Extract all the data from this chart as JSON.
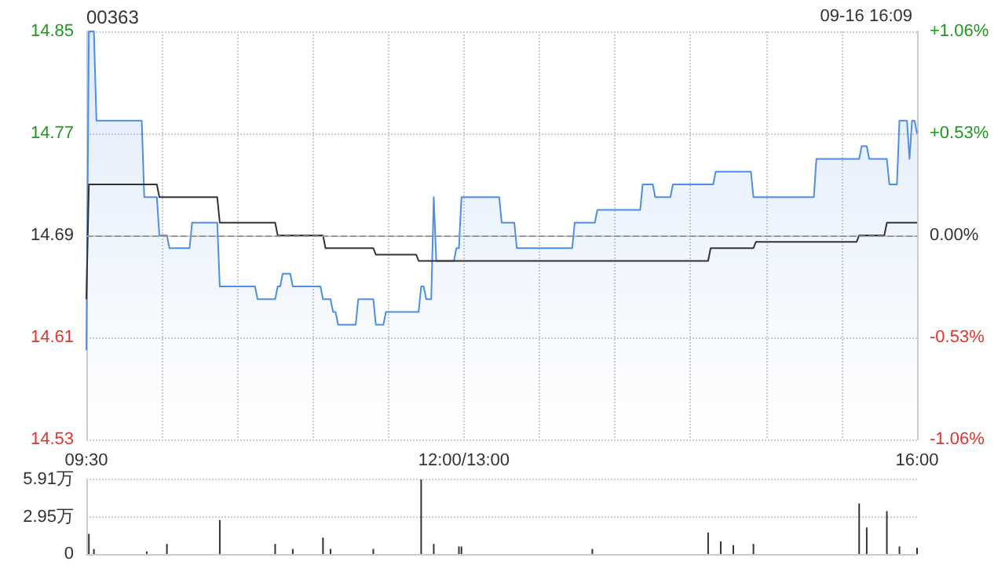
{
  "chart_data": [
    {
      "type": "line",
      "title": "00363",
      "subtitle": "09-16 16:09",
      "categories": [
        "09:30",
        null,
        null,
        null,
        null,
        null,
        null,
        null,
        null,
        null,
        null,
        null,
        null,
        null,
        null,
        null,
        null,
        null,
        null,
        null,
        null,
        null,
        null,
        null,
        null,
        null,
        null,
        null,
        null,
        null,
        null,
        null,
        null,
        null,
        null,
        null,
        null,
        null,
        null,
        null,
        null,
        null,
        null,
        null,
        null,
        null,
        null,
        null,
        null,
        null,
        null,
        null,
        null,
        null,
        null,
        null,
        null,
        null,
        null,
        null,
        null,
        null,
        null,
        null,
        null,
        null,
        null,
        null,
        null,
        null,
        null,
        null,
        null,
        null,
        null,
        null,
        null,
        null,
        null,
        null,
        null,
        null,
        null,
        null,
        null,
        null,
        null,
        null,
        null,
        null,
        null,
        null,
        null,
        null,
        null,
        null,
        null,
        null,
        null,
        null,
        null,
        null,
        null,
        null,
        null,
        null,
        null,
        null,
        null,
        null,
        null,
        null,
        null,
        null,
        null,
        null,
        null,
        null,
        null,
        null,
        null,
        null,
        null,
        null,
        null,
        null,
        null,
        null,
        null,
        null,
        null,
        null,
        null,
        null,
        null,
        null,
        null,
        null,
        null,
        null,
        null,
        null,
        null,
        null,
        null,
        null,
        null,
        null,
        null,
        null,
        "12:00/13:00",
        null,
        null,
        null,
        null,
        null,
        null,
        null,
        null,
        null,
        null,
        null,
        null,
        null,
        null,
        null,
        null,
        null,
        null,
        null,
        null,
        null,
        null,
        null,
        null,
        null,
        null,
        null,
        null,
        null,
        null,
        null,
        null,
        null,
        null,
        null,
        null,
        null,
        null,
        null,
        null,
        null,
        null,
        null,
        null,
        null,
        null,
        null,
        null,
        null,
        null,
        null,
        null,
        null,
        null,
        null,
        null,
        null,
        null,
        null,
        null,
        null,
        null,
        null,
        null,
        null,
        null,
        null,
        null,
        null,
        null,
        null,
        null,
        null,
        null,
        null,
        null,
        null,
        null,
        null,
        null,
        null,
        null,
        null,
        null,
        null,
        null,
        null,
        null,
        null,
        null,
        null,
        null,
        null,
        null,
        null,
        null,
        null,
        null,
        null,
        null,
        null,
        null,
        null,
        null,
        null,
        null,
        null,
        null,
        null,
        null,
        null,
        null,
        null,
        null,
        null,
        null,
        null,
        null,
        null,
        null,
        null,
        null,
        null,
        null,
        null,
        null,
        null,
        null,
        null,
        null,
        null,
        null,
        null,
        null,
        null,
        null,
        null,
        null,
        null,
        null,
        null,
        null,
        null,
        null,
        null,
        null,
        null,
        null,
        null,
        null,
        null,
        null,
        null,
        null,
        null,
        null,
        null,
        null,
        null,
        null,
        null,
        null,
        null,
        null,
        null,
        null,
        null,
        null,
        null,
        null,
        null,
        null,
        null,
        null,
        null,
        null,
        null,
        null,
        null,
        "16:00"
      ],
      "ylim": [
        14.53,
        14.85
      ],
      "yticks": [
        14.53,
        14.61,
        14.69,
        14.77,
        14.85
      ],
      "y2lim": [
        -1.06,
        1.06
      ],
      "y2ticks": [
        {
          "value": -1.06,
          "label": "-1.06%"
        },
        {
          "value": -0.53,
          "label": "-0.53%"
        },
        {
          "value": 0,
          "label": "0.00%"
        },
        {
          "value": 0.53,
          "label": "+0.53%"
        },
        {
          "value": 1.06,
          "label": "+1.06%"
        }
      ],
      "grid": true,
      "marker": "none",
      "ref_lines": [
        {
          "axis": "y",
          "value": 14.69,
          "color": "#999999",
          "line_style": "dashed"
        }
      ],
      "series": [
        {
          "type": "area",
          "color": "#4d8ee8",
          "values": [
            14.6,
            14.85,
            14.85,
            14.85,
            14.78,
            14.78,
            14.78,
            14.78,
            14.78,
            14.78,
            14.78,
            14.78,
            14.78,
            14.78,
            14.78,
            14.78,
            14.78,
            14.78,
            14.78,
            14.78,
            14.78,
            14.78,
            14.78,
            14.72,
            14.72,
            14.72,
            14.72,
            14.72,
            14.72,
            14.69,
            14.69,
            14.69,
            14.69,
            14.68,
            14.68,
            14.68,
            14.68,
            14.68,
            14.68,
            14.68,
            14.68,
            14.68,
            14.7,
            14.7,
            14.7,
            14.7,
            14.7,
            14.7,
            14.7,
            14.7,
            14.7,
            14.7,
            14.7,
            14.65,
            14.65,
            14.65,
            14.65,
            14.65,
            14.65,
            14.65,
            14.65,
            14.65,
            14.65,
            14.65,
            14.65,
            14.65,
            14.65,
            14.65,
            14.64,
            14.64,
            14.64,
            14.64,
            14.64,
            14.64,
            14.64,
            14.64,
            14.65,
            14.65,
            14.66,
            14.66,
            14.66,
            14.66,
            14.65,
            14.65,
            14.65,
            14.65,
            14.65,
            14.65,
            14.65,
            14.65,
            14.65,
            14.65,
            14.65,
            14.65,
            14.64,
            14.64,
            14.64,
            14.64,
            14.63,
            14.63,
            14.62,
            14.62,
            14.62,
            14.62,
            14.62,
            14.62,
            14.62,
            14.62,
            14.64,
            14.64,
            14.64,
            14.64,
            14.64,
            14.64,
            14.64,
            14.62,
            14.62,
            14.62,
            14.62,
            14.63,
            14.63,
            14.63,
            14.63,
            14.63,
            14.63,
            14.63,
            14.63,
            14.63,
            14.63,
            14.63,
            14.63,
            14.63,
            14.63,
            14.65,
            14.65,
            14.64,
            14.64,
            14.64,
            14.72,
            14.67,
            14.67,
            14.67,
            14.67,
            14.67,
            14.67,
            14.67,
            14.67,
            14.68,
            14.68,
            14.72,
            14.72,
            14.72,
            14.72,
            14.72,
            14.72,
            14.72,
            14.72,
            14.72,
            14.72,
            14.72,
            14.72,
            14.72,
            14.72,
            14.72,
            14.72,
            14.7,
            14.7,
            14.7,
            14.7,
            14.7,
            14.7,
            14.68,
            14.68,
            14.68,
            14.68,
            14.68,
            14.68,
            14.68,
            14.68,
            14.68,
            14.68,
            14.68,
            14.68,
            14.68,
            14.68,
            14.68,
            14.68,
            14.68,
            14.68,
            14.68,
            14.68,
            14.68,
            14.68,
            14.68,
            14.7,
            14.7,
            14.7,
            14.7,
            14.7,
            14.7,
            14.7,
            14.7,
            14.7,
            14.71,
            14.71,
            14.71,
            14.71,
            14.71,
            14.71,
            14.71,
            14.71,
            14.71,
            14.71,
            14.71,
            14.71,
            14.71,
            14.71,
            14.71,
            14.71,
            14.71,
            14.71,
            14.73,
            14.73,
            14.73,
            14.73,
            14.73,
            14.72,
            14.72,
            14.72,
            14.72,
            14.72,
            14.72,
            14.72,
            14.73,
            14.73,
            14.73,
            14.73,
            14.73,
            14.73,
            14.73,
            14.73,
            14.73,
            14.73,
            14.73,
            14.73,
            14.73,
            14.73,
            14.73,
            14.73,
            14.73,
            14.74,
            14.74,
            14.74,
            14.74,
            14.74,
            14.74,
            14.74,
            14.74,
            14.74,
            14.74,
            14.74,
            14.74,
            14.74,
            14.74,
            14.74,
            14.72,
            14.72,
            14.72,
            14.72,
            14.72,
            14.72,
            14.72,
            14.72,
            14.72,
            14.72,
            14.72,
            14.72,
            14.72,
            14.72,
            14.72,
            14.72,
            14.72,
            14.72,
            14.72,
            14.72,
            14.72,
            14.72,
            14.72,
            14.72,
            14.72,
            14.75,
            14.75,
            14.75,
            14.75,
            14.75,
            14.75,
            14.75,
            14.75,
            14.75,
            14.75,
            14.75,
            14.75,
            14.75,
            14.75,
            14.75,
            14.75,
            14.75,
            14.75,
            14.76,
            14.76,
            14.76,
            14.75,
            14.75,
            14.75,
            14.75,
            14.75,
            14.75,
            14.75,
            14.75,
            14.73,
            14.73,
            14.73,
            14.73,
            14.78,
            14.78,
            14.78,
            14.78,
            14.75,
            14.78,
            14.78,
            14.77
          ]
        },
        {
          "type": "line",
          "color": "#333333",
          "values": [
            14.64,
            14.73,
            14.73,
            14.73,
            14.73,
            14.73,
            14.73,
            14.73,
            14.73,
            14.73,
            14.73,
            14.73,
            14.73,
            14.73,
            14.73,
            14.73,
            14.73,
            14.73,
            14.73,
            14.73,
            14.73,
            14.73,
            14.73,
            14.73,
            14.73,
            14.73,
            14.73,
            14.73,
            14.73,
            14.72,
            14.72,
            14.72,
            14.72,
            14.72,
            14.72,
            14.72,
            14.72,
            14.72,
            14.72,
            14.72,
            14.72,
            14.72,
            14.72,
            14.72,
            14.72,
            14.72,
            14.72,
            14.72,
            14.72,
            14.72,
            14.72,
            14.72,
            14.72,
            14.7,
            14.7,
            14.7,
            14.7,
            14.7,
            14.7,
            14.7,
            14.7,
            14.7,
            14.7,
            14.7,
            14.7,
            14.7,
            14.7,
            14.7,
            14.7,
            14.7,
            14.7,
            14.7,
            14.7,
            14.7,
            14.7,
            14.7,
            14.69,
            14.69,
            14.69,
            14.69,
            14.69,
            14.69,
            14.69,
            14.69,
            14.69,
            14.69,
            14.69,
            14.69,
            14.69,
            14.69,
            14.69,
            14.69,
            14.69,
            14.69,
            14.69,
            14.68,
            14.68,
            14.68,
            14.68,
            14.68,
            14.68,
            14.68,
            14.68,
            14.68,
            14.68,
            14.68,
            14.68,
            14.68,
            14.68,
            14.68,
            14.68,
            14.68,
            14.68,
            14.68,
            14.68,
            14.675,
            14.675,
            14.675,
            14.675,
            14.675,
            14.675,
            14.675,
            14.675,
            14.675,
            14.675,
            14.675,
            14.675,
            14.675,
            14.675,
            14.675,
            14.675,
            14.675,
            14.67,
            14.67,
            14.67,
            14.67,
            14.67,
            14.67,
            14.67,
            14.67,
            14.67,
            14.67,
            14.67,
            14.67,
            14.67,
            14.67,
            14.67,
            14.67,
            14.67,
            14.67,
            14.67,
            14.67,
            14.67,
            14.67,
            14.67,
            14.67,
            14.67,
            14.67,
            14.67,
            14.67,
            14.67,
            14.67,
            14.67,
            14.67,
            14.67,
            14.67,
            14.67,
            14.67,
            14.67,
            14.67,
            14.67,
            14.67,
            14.67,
            14.67,
            14.67,
            14.67,
            14.67,
            14.67,
            14.67,
            14.67,
            14.67,
            14.67,
            14.67,
            14.67,
            14.67,
            14.67,
            14.67,
            14.67,
            14.67,
            14.67,
            14.67,
            14.67,
            14.67,
            14.67,
            14.67,
            14.67,
            14.67,
            14.67,
            14.67,
            14.67,
            14.67,
            14.67,
            14.67,
            14.67,
            14.67,
            14.67,
            14.67,
            14.67,
            14.67,
            14.67,
            14.67,
            14.67,
            14.67,
            14.67,
            14.67,
            14.67,
            14.67,
            14.67,
            14.67,
            14.67,
            14.67,
            14.67,
            14.67,
            14.67,
            14.67,
            14.67,
            14.67,
            14.67,
            14.67,
            14.67,
            14.67,
            14.67,
            14.67,
            14.67,
            14.67,
            14.67,
            14.67,
            14.67,
            14.67,
            14.67,
            14.67,
            14.67,
            14.67,
            14.67,
            14.67,
            14.67,
            14.67,
            14.67,
            14.68,
            14.68,
            14.68,
            14.68,
            14.68,
            14.68,
            14.68,
            14.68,
            14.68,
            14.68,
            14.68,
            14.68,
            14.68,
            14.68,
            14.68,
            14.68,
            14.68,
            14.68,
            14.685,
            14.685,
            14.685,
            14.685,
            14.685,
            14.685,
            14.685,
            14.685,
            14.685,
            14.685,
            14.685,
            14.685,
            14.685,
            14.685,
            14.685,
            14.685,
            14.685,
            14.685,
            14.685,
            14.685,
            14.685,
            14.685,
            14.685,
            14.685,
            14.685,
            14.685,
            14.685,
            14.685,
            14.685,
            14.685,
            14.685,
            14.685,
            14.685,
            14.685,
            14.685,
            14.685,
            14.685,
            14.685,
            14.685,
            14.685,
            14.685,
            14.69,
            14.69,
            14.69,
            14.69,
            14.69,
            14.69,
            14.69,
            14.69,
            14.69,
            14.69,
            14.69,
            14.7,
            14.7,
            14.7,
            14.7,
            14.7,
            14.7,
            14.7,
            14.7,
            14.7,
            14.7,
            14.7,
            14.7,
            14.7
          ]
        }
      ]
    },
    {
      "type": "bar",
      "color": "#333333",
      "tick_labels": "y",
      "grid": "y",
      "categories": [
        null,
        null,
        null,
        null,
        null,
        null,
        null,
        null,
        null,
        null,
        null,
        null,
        null,
        null,
        null,
        null,
        null,
        null,
        null,
        null,
        null,
        null,
        null,
        null,
        null,
        null,
        null,
        null,
        null,
        null,
        null,
        null,
        null,
        null,
        null,
        null,
        null,
        null,
        null,
        null,
        null,
        null,
        null,
        null,
        null,
        null,
        null,
        null,
        null,
        null,
        null,
        null,
        null,
        null,
        null,
        null,
        null,
        null,
        null,
        null,
        null,
        null,
        null,
        null,
        null,
        null,
        null,
        null,
        null,
        null,
        null,
        null,
        null,
        null,
        null,
        null,
        null,
        null,
        null,
        null,
        null,
        null,
        null,
        null,
        null,
        null,
        null,
        null,
        null,
        null,
        null,
        null,
        null,
        null,
        null,
        null,
        null,
        null,
        null,
        null,
        null,
        null,
        null,
        null,
        null,
        null,
        null,
        null,
        null,
        null,
        null,
        null,
        null,
        null,
        null,
        null,
        null,
        null,
        null,
        null,
        null,
        null,
        null,
        null,
        null,
        null,
        null,
        null,
        null,
        null,
        null,
        null,
        null,
        null,
        null,
        null,
        null,
        null,
        null,
        null,
        null,
        null,
        null,
        null,
        null,
        null,
        null,
        null,
        null,
        null,
        null,
        null,
        null,
        null,
        null,
        null,
        null,
        null,
        null,
        null,
        null,
        null,
        null,
        null,
        null,
        null,
        null,
        null,
        null,
        null,
        null,
        null,
        null,
        null,
        null,
        null,
        null,
        null,
        null,
        null,
        null,
        null,
        null,
        null,
        null,
        null,
        null,
        null,
        null,
        null,
        null,
        null,
        null,
        null,
        null,
        null,
        null,
        null,
        null,
        null,
        null,
        null,
        null,
        null,
        null,
        null,
        null,
        null,
        null,
        null,
        null,
        null,
        null,
        null,
        null,
        null,
        null,
        null,
        null,
        null,
        null,
        null,
        null,
        null,
        null,
        null,
        null,
        null,
        null,
        null,
        null,
        null,
        null,
        null,
        null,
        null,
        null,
        null,
        null,
        null,
        null,
        null,
        null,
        null,
        null,
        null,
        null,
        null,
        null,
        null,
        null,
        null,
        null,
        null,
        null,
        null,
        null,
        null,
        null,
        null,
        null,
        null,
        null,
        null,
        null,
        null,
        null,
        null,
        null,
        null,
        null,
        null,
        null,
        null,
        null,
        null,
        null,
        null,
        null,
        null,
        null,
        null,
        null,
        null,
        null,
        null,
        null,
        null,
        null,
        null,
        null,
        null,
        null,
        null,
        null,
        null,
        null,
        null,
        null,
        null,
        null,
        null,
        null,
        null,
        null,
        null,
        null,
        null,
        null,
        null,
        null,
        null,
        null,
        null,
        null,
        null,
        null,
        null,
        null,
        null,
        null,
        null,
        null,
        null,
        null,
        null,
        null,
        null,
        null,
        null,
        null
      ],
      "ylim": [
        0,
        5.91
      ],
      "yticks": [
        0,
        {
          "value": 2.95,
          "label": "2.95万"
        },
        {
          "value": 5.91,
          "label": "5.91万"
        }
      ],
      "values": [
        null,
        1.6,
        null,
        0.4,
        null,
        null,
        null,
        null,
        null,
        null,
        null,
        null,
        null,
        null,
        null,
        null,
        null,
        null,
        null,
        null,
        null,
        null,
        null,
        null,
        0.2,
        null,
        null,
        null,
        null,
        null,
        null,
        null,
        0.8,
        null,
        null,
        null,
        null,
        null,
        null,
        null,
        null,
        null,
        null,
        null,
        null,
        null,
        null,
        null,
        null,
        null,
        null,
        null,
        null,
        2.7,
        null,
        null,
        null,
        null,
        null,
        null,
        null,
        null,
        null,
        null,
        null,
        null,
        null,
        null,
        null,
        null,
        null,
        null,
        null,
        null,
        null,
        0.8,
        null,
        null,
        null,
        null,
        null,
        null,
        0.4,
        null,
        null,
        null,
        null,
        null,
        null,
        null,
        null,
        null,
        null,
        null,
        1.3,
        null,
        null,
        0.4,
        null,
        null,
        null,
        null,
        null,
        null,
        null,
        null,
        null,
        null,
        null,
        null,
        null,
        null,
        null,
        null,
        0.4,
        null,
        null,
        null,
        null,
        null,
        null,
        null,
        null,
        null,
        null,
        null,
        null,
        null,
        null,
        null,
        null,
        null,
        null,
        5.9,
        null,
        null,
        null,
        null,
        0.8,
        null,
        null,
        null,
        null,
        null,
        null,
        null,
        null,
        null,
        0.6,
        0.6,
        null,
        null,
        null,
        null,
        null,
        null,
        null,
        null,
        null,
        null,
        null,
        null,
        null,
        null,
        null,
        null,
        null,
        null,
        null,
        null,
        null,
        null,
        null,
        null,
        null,
        null,
        null,
        null,
        null,
        null,
        null,
        null,
        null,
        null,
        null,
        null,
        null,
        null,
        null,
        null,
        null,
        null,
        null,
        null,
        null,
        null,
        null,
        null,
        null,
        null,
        null,
        0.4,
        null,
        null,
        null,
        null,
        null,
        null,
        null,
        null,
        null,
        null,
        null,
        null,
        null,
        null,
        null,
        null,
        null,
        null,
        null,
        null,
        null,
        null,
        null,
        null,
        null,
        null,
        null,
        null,
        null,
        null,
        null,
        null,
        null,
        null,
        null,
        null,
        null,
        null,
        null,
        null,
        null,
        null,
        null,
        null,
        null,
        1.7,
        null,
        null,
        null,
        null,
        1.0,
        null,
        null,
        null,
        null,
        0.7,
        null,
        null,
        null,
        null,
        null,
        null,
        null,
        0.8,
        null,
        null,
        null,
        null,
        null,
        null,
        null,
        null,
        null,
        null,
        null,
        null,
        null,
        null,
        null,
        null,
        null,
        null,
        null,
        null,
        null,
        null,
        null,
        null,
        null,
        null,
        null,
        null,
        null,
        null,
        null,
        null,
        null,
        null,
        null,
        null,
        null,
        null,
        null,
        null,
        null,
        4.0,
        null,
        null,
        2.1,
        null,
        null,
        null,
        null,
        null,
        null,
        null,
        3.4,
        null,
        null,
        null,
        null,
        0.6,
        null,
        null,
        null,
        null,
        null,
        null,
        0.5
      ]
    }
  ]
}
